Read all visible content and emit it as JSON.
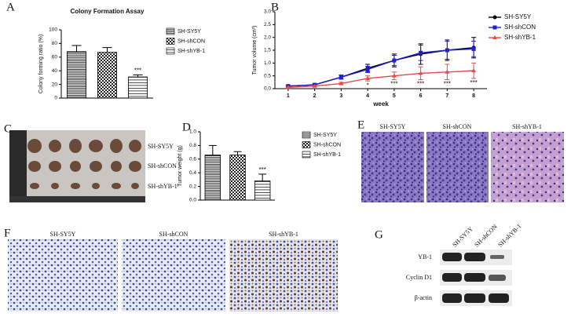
{
  "chart_data": [
    {
      "type": "bar",
      "panel": "A",
      "title": "Colony Formation Assay",
      "y_label": "Colony forming ratio (%)",
      "ylim": [
        0,
        100
      ],
      "yticks": [
        0,
        20,
        40,
        60,
        80,
        100
      ],
      "legend": "right",
      "series": [
        {
          "name": "SH-SY5Y",
          "pattern": "hlines-dense",
          "values": [
            68
          ],
          "errors": [
            9
          ]
        },
        {
          "name": "SH-shCON",
          "pattern": "checker",
          "values": [
            67
          ],
          "errors": [
            7
          ]
        },
        {
          "name": "SH-shYB-1",
          "pattern": "hlines",
          "values": [
            31
          ],
          "errors": [
            3
          ]
        }
      ],
      "annotations": [
        {
          "series": 2,
          "text": "***"
        }
      ]
    },
    {
      "type": "line",
      "panel": "B",
      "x_label": "week",
      "y_label": "Tumor volume (cm³)",
      "x": [
        1,
        2,
        3,
        4,
        5,
        6,
        7,
        8
      ],
      "xlim": [
        0.5,
        8.5
      ],
      "xticks": [
        1,
        2,
        3,
        4,
        5,
        6,
        7,
        8
      ],
      "ylim": [
        0,
        3
      ],
      "yticks": [
        {
          "value": 0,
          "label": "0.0"
        },
        {
          "value": 0.5,
          "label": "0.5"
        },
        {
          "value": 1,
          "label": "1.0"
        },
        {
          "value": 1.5,
          "label": "1.5"
        },
        {
          "value": 2,
          "label": "2.0"
        },
        {
          "value": 2.5,
          "label": "2.5"
        },
        {
          "value": 3,
          "label": "3.0"
        }
      ],
      "legend": "right",
      "series": [
        {
          "name": "SH-SY5Y",
          "color": "#000000",
          "marker": "circle",
          "values": [
            0.1,
            0.15,
            0.45,
            0.8,
            1.1,
            1.35,
            1.5,
            1.6
          ],
          "errors": [
            0.02,
            0.03,
            0.08,
            0.15,
            0.25,
            0.4,
            0.4,
            0.4
          ]
        },
        {
          "name": "SH-shCON",
          "color": "#1f1fd0",
          "marker": "square",
          "values": [
            0.1,
            0.15,
            0.45,
            0.75,
            1.1,
            1.4,
            1.5,
            1.55
          ],
          "errors": [
            0.02,
            0.03,
            0.08,
            0.12,
            0.2,
            0.3,
            0.35,
            0.3
          ]
        },
        {
          "name": "SH-shYB-1",
          "color": "#e84a4a",
          "marker": "triangle",
          "values": [
            0.05,
            0.1,
            0.2,
            0.4,
            0.5,
            0.6,
            0.65,
            0.7
          ],
          "errors": [
            0.02,
            0.03,
            0.05,
            0.1,
            0.15,
            0.25,
            0.3,
            0.3
          ]
        }
      ],
      "annotations": [
        {
          "x": 4,
          "text": "*"
        },
        {
          "x": 5,
          "text": "***"
        },
        {
          "x": 6,
          "text": "***"
        },
        {
          "x": 7,
          "text": "***"
        },
        {
          "x": 8,
          "text": "***"
        }
      ]
    },
    {
      "type": "bar",
      "panel": "D",
      "y_label": "Tumor weight (g)",
      "ylim": [
        0,
        1
      ],
      "yticks": [
        {
          "value": 0,
          "label": "0.0"
        },
        {
          "value": 0.2,
          "label": "0.2"
        },
        {
          "value": 0.4,
          "label": "0.4"
        },
        {
          "value": 0.6,
          "label": "0.6"
        },
        {
          "value": 0.8,
          "label": "0.8"
        },
        {
          "value": 1,
          "label": "1.0"
        }
      ],
      "legend": "right",
      "series": [
        {
          "name": "SH-SY5Y",
          "pattern": "hlines-dense",
          "values": [
            0.66
          ],
          "errors": [
            0.14
          ]
        },
        {
          "name": "SH-shCON",
          "pattern": "checker",
          "values": [
            0.66
          ],
          "errors": [
            0.05
          ]
        },
        {
          "name": "SH-shYB-1",
          "pattern": "hlines",
          "values": [
            0.28
          ],
          "errors": [
            0.1
          ]
        }
      ],
      "annotations": [
        {
          "series": 2,
          "text": "***"
        }
      ]
    }
  ],
  "panels": {
    "C": {
      "letter": "C",
      "labels": [
        "SH-SY5Y",
        "SH-shCON",
        "SH-shYB-1"
      ]
    },
    "E": {
      "letter": "E",
      "labels": [
        "SH-SY5Y",
        "SH-shCON",
        "SH-shYB-1"
      ]
    },
    "F": {
      "letter": "F",
      "labels": [
        "SH-SY5Y",
        "SH-shCON",
        "SH-shYB-1"
      ]
    },
    "G": {
      "letter": "G",
      "lanes": [
        "SH-SY5Y",
        "SH-shCON",
        "SH-shYB-1"
      ],
      "rows": [
        "YB-1",
        "Cyclin D1",
        "β-actin"
      ]
    }
  }
}
